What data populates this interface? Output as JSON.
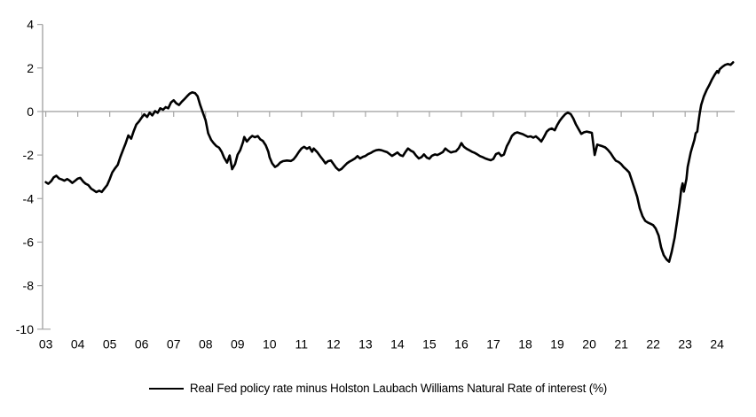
{
  "chart_data": {
    "type": "line",
    "title": "",
    "legend": {
      "position": "bottom-center",
      "label": "Real Fed policy rate minus Holston Laubach Williams Natural Rate of interest (%)"
    },
    "grid": "zero-line-only",
    "background_color": "#ffffff",
    "axis_color": "#a6a6a6",
    "line_color": "#000000",
    "tick_label_color": "#000000",
    "ylim": [
      -10,
      4
    ],
    "xlim": [
      2002.9,
      2024.55
    ],
    "y_ticks": [
      4,
      2,
      0,
      -2,
      -4,
      -6,
      -8,
      -10
    ],
    "y_tick_labels": [
      "4",
      "2",
      "0",
      "-2",
      "-4",
      "-6",
      "-8",
      "-10"
    ],
    "x_tick_years": [
      2003,
      2004,
      2005,
      2006,
      2007,
      2008,
      2009,
      2010,
      2011,
      2012,
      2013,
      2014,
      2015,
      2016,
      2017,
      2018,
      2019,
      2020,
      2021,
      2022,
      2023,
      2024
    ],
    "x_tick_labels": [
      "03",
      "04",
      "05",
      "06",
      "07",
      "08",
      "09",
      "10",
      "11",
      "12",
      "13",
      "14",
      "15",
      "16",
      "17",
      "18",
      "19",
      "20",
      "21",
      "22",
      "23",
      "24"
    ],
    "series": [
      {
        "name": "Real Fed policy rate minus Holston Laubach Williams Natural Rate of interest (%)",
        "color": "#000000",
        "points": [
          [
            2003.0,
            -3.25
          ],
          [
            2003.08,
            -3.32
          ],
          [
            2003.17,
            -3.2
          ],
          [
            2003.25,
            -3.02
          ],
          [
            2003.33,
            -2.95
          ],
          [
            2003.42,
            -3.08
          ],
          [
            2003.5,
            -3.12
          ],
          [
            2003.58,
            -3.18
          ],
          [
            2003.67,
            -3.1
          ],
          [
            2003.75,
            -3.18
          ],
          [
            2003.83,
            -3.28
          ],
          [
            2003.92,
            -3.18
          ],
          [
            2004.0,
            -3.08
          ],
          [
            2004.08,
            -3.05
          ],
          [
            2004.17,
            -3.22
          ],
          [
            2004.25,
            -3.32
          ],
          [
            2004.33,
            -3.38
          ],
          [
            2004.42,
            -3.55
          ],
          [
            2004.5,
            -3.62
          ],
          [
            2004.58,
            -3.7
          ],
          [
            2004.67,
            -3.64
          ],
          [
            2004.75,
            -3.7
          ],
          [
            2004.83,
            -3.55
          ],
          [
            2004.92,
            -3.38
          ],
          [
            2005.0,
            -3.1
          ],
          [
            2005.08,
            -2.8
          ],
          [
            2005.17,
            -2.6
          ],
          [
            2005.25,
            -2.45
          ],
          [
            2005.33,
            -2.1
          ],
          [
            2005.42,
            -1.75
          ],
          [
            2005.5,
            -1.45
          ],
          [
            2005.58,
            -1.1
          ],
          [
            2005.67,
            -1.25
          ],
          [
            2005.75,
            -0.9
          ],
          [
            2005.83,
            -0.6
          ],
          [
            2005.92,
            -0.45
          ],
          [
            2006.0,
            -0.28
          ],
          [
            2006.08,
            -0.13
          ],
          [
            2006.17,
            -0.25
          ],
          [
            2006.25,
            -0.05
          ],
          [
            2006.33,
            -0.18
          ],
          [
            2006.42,
            0.02
          ],
          [
            2006.5,
            -0.06
          ],
          [
            2006.58,
            0.15
          ],
          [
            2006.67,
            0.08
          ],
          [
            2006.75,
            0.2
          ],
          [
            2006.83,
            0.15
          ],
          [
            2006.92,
            0.42
          ],
          [
            2007.0,
            0.52
          ],
          [
            2007.08,
            0.38
          ],
          [
            2007.17,
            0.3
          ],
          [
            2007.25,
            0.44
          ],
          [
            2007.33,
            0.56
          ],
          [
            2007.42,
            0.7
          ],
          [
            2007.5,
            0.82
          ],
          [
            2007.58,
            0.88
          ],
          [
            2007.67,
            0.84
          ],
          [
            2007.75,
            0.7
          ],
          [
            2007.83,
            0.3
          ],
          [
            2007.92,
            -0.08
          ],
          [
            2008.0,
            -0.4
          ],
          [
            2008.08,
            -1.0
          ],
          [
            2008.17,
            -1.3
          ],
          [
            2008.25,
            -1.45
          ],
          [
            2008.33,
            -1.58
          ],
          [
            2008.42,
            -1.66
          ],
          [
            2008.5,
            -1.85
          ],
          [
            2008.58,
            -2.12
          ],
          [
            2008.67,
            -2.35
          ],
          [
            2008.75,
            -2.02
          ],
          [
            2008.83,
            -2.65
          ],
          [
            2008.92,
            -2.42
          ],
          [
            2009.0,
            -1.98
          ],
          [
            2009.08,
            -1.78
          ],
          [
            2009.17,
            -1.4
          ],
          [
            2009.21,
            -1.17
          ],
          [
            2009.29,
            -1.38
          ],
          [
            2009.38,
            -1.22
          ],
          [
            2009.46,
            -1.12
          ],
          [
            2009.54,
            -1.18
          ],
          [
            2009.63,
            -1.13
          ],
          [
            2009.71,
            -1.28
          ],
          [
            2009.79,
            -1.35
          ],
          [
            2009.88,
            -1.55
          ],
          [
            2009.96,
            -1.85
          ],
          [
            2010.0,
            -2.1
          ],
          [
            2010.08,
            -2.38
          ],
          [
            2010.17,
            -2.55
          ],
          [
            2010.25,
            -2.48
          ],
          [
            2010.33,
            -2.35
          ],
          [
            2010.42,
            -2.28
          ],
          [
            2010.54,
            -2.25
          ],
          [
            2010.67,
            -2.27
          ],
          [
            2010.75,
            -2.2
          ],
          [
            2010.83,
            -2.05
          ],
          [
            2010.92,
            -1.85
          ],
          [
            2011.0,
            -1.7
          ],
          [
            2011.08,
            -1.62
          ],
          [
            2011.17,
            -1.71
          ],
          [
            2011.25,
            -1.64
          ],
          [
            2011.33,
            -1.85
          ],
          [
            2011.38,
            -1.7
          ],
          [
            2011.5,
            -1.88
          ],
          [
            2011.58,
            -2.05
          ],
          [
            2011.67,
            -2.22
          ],
          [
            2011.75,
            -2.38
          ],
          [
            2011.83,
            -2.28
          ],
          [
            2011.92,
            -2.25
          ],
          [
            2012.0,
            -2.42
          ],
          [
            2012.08,
            -2.58
          ],
          [
            2012.17,
            -2.7
          ],
          [
            2012.25,
            -2.64
          ],
          [
            2012.33,
            -2.52
          ],
          [
            2012.42,
            -2.38
          ],
          [
            2012.5,
            -2.3
          ],
          [
            2012.58,
            -2.24
          ],
          [
            2012.67,
            -2.16
          ],
          [
            2012.75,
            -2.05
          ],
          [
            2012.83,
            -2.16
          ],
          [
            2012.92,
            -2.08
          ],
          [
            2013.0,
            -2.04
          ],
          [
            2013.08,
            -1.96
          ],
          [
            2013.17,
            -1.9
          ],
          [
            2013.25,
            -1.83
          ],
          [
            2013.33,
            -1.78
          ],
          [
            2013.42,
            -1.76
          ],
          [
            2013.5,
            -1.78
          ],
          [
            2013.58,
            -1.82
          ],
          [
            2013.67,
            -1.86
          ],
          [
            2013.75,
            -1.95
          ],
          [
            2013.83,
            -2.04
          ],
          [
            2013.92,
            -1.96
          ],
          [
            2014.0,
            -1.88
          ],
          [
            2014.08,
            -2.0
          ],
          [
            2014.17,
            -2.05
          ],
          [
            2014.25,
            -1.86
          ],
          [
            2014.33,
            -1.7
          ],
          [
            2014.42,
            -1.8
          ],
          [
            2014.5,
            -1.86
          ],
          [
            2014.58,
            -2.02
          ],
          [
            2014.67,
            -2.16
          ],
          [
            2014.75,
            -2.1
          ],
          [
            2014.83,
            -1.97
          ],
          [
            2014.92,
            -2.12
          ],
          [
            2015.0,
            -2.17
          ],
          [
            2015.08,
            -2.03
          ],
          [
            2015.17,
            -1.97
          ],
          [
            2015.25,
            -2.0
          ],
          [
            2015.33,
            -1.94
          ],
          [
            2015.42,
            -1.86
          ],
          [
            2015.5,
            -1.7
          ],
          [
            2015.58,
            -1.8
          ],
          [
            2015.67,
            -1.88
          ],
          [
            2015.75,
            -1.85
          ],
          [
            2015.83,
            -1.83
          ],
          [
            2015.92,
            -1.68
          ],
          [
            2016.0,
            -1.45
          ],
          [
            2016.08,
            -1.62
          ],
          [
            2016.17,
            -1.72
          ],
          [
            2016.25,
            -1.78
          ],
          [
            2016.33,
            -1.85
          ],
          [
            2016.42,
            -1.9
          ],
          [
            2016.5,
            -1.97
          ],
          [
            2016.58,
            -2.05
          ],
          [
            2016.67,
            -2.1
          ],
          [
            2016.75,
            -2.16
          ],
          [
            2016.83,
            -2.2
          ],
          [
            2016.92,
            -2.24
          ],
          [
            2017.0,
            -2.18
          ],
          [
            2017.08,
            -1.96
          ],
          [
            2017.17,
            -1.9
          ],
          [
            2017.25,
            -2.04
          ],
          [
            2017.33,
            -1.98
          ],
          [
            2017.42,
            -1.6
          ],
          [
            2017.5,
            -1.38
          ],
          [
            2017.58,
            -1.12
          ],
          [
            2017.67,
            -1.0
          ],
          [
            2017.75,
            -0.96
          ],
          [
            2017.83,
            -1.0
          ],
          [
            2017.92,
            -1.04
          ],
          [
            2018.0,
            -1.1
          ],
          [
            2018.08,
            -1.16
          ],
          [
            2018.17,
            -1.14
          ],
          [
            2018.25,
            -1.2
          ],
          [
            2018.33,
            -1.14
          ],
          [
            2018.42,
            -1.26
          ],
          [
            2018.5,
            -1.38
          ],
          [
            2018.58,
            -1.18
          ],
          [
            2018.67,
            -0.92
          ],
          [
            2018.75,
            -0.82
          ],
          [
            2018.83,
            -0.78
          ],
          [
            2018.92,
            -0.86
          ],
          [
            2019.0,
            -0.62
          ],
          [
            2019.08,
            -0.42
          ],
          [
            2019.17,
            -0.25
          ],
          [
            2019.25,
            -0.12
          ],
          [
            2019.33,
            -0.05
          ],
          [
            2019.42,
            -0.12
          ],
          [
            2019.5,
            -0.32
          ],
          [
            2019.58,
            -0.58
          ],
          [
            2019.67,
            -0.82
          ],
          [
            2019.75,
            -1.03
          ],
          [
            2019.83,
            -0.96
          ],
          [
            2019.92,
            -0.92
          ],
          [
            2020.0,
            -0.95
          ],
          [
            2020.08,
            -0.98
          ],
          [
            2020.17,
            -2.0
          ],
          [
            2020.25,
            -1.52
          ],
          [
            2020.33,
            -1.56
          ],
          [
            2020.42,
            -1.6
          ],
          [
            2020.5,
            -1.65
          ],
          [
            2020.58,
            -1.76
          ],
          [
            2020.67,
            -1.92
          ],
          [
            2020.75,
            -2.1
          ],
          [
            2020.83,
            -2.26
          ],
          [
            2020.92,
            -2.32
          ],
          [
            2021.0,
            -2.42
          ],
          [
            2021.08,
            -2.56
          ],
          [
            2021.17,
            -2.68
          ],
          [
            2021.25,
            -2.8
          ],
          [
            2021.33,
            -3.15
          ],
          [
            2021.42,
            -3.55
          ],
          [
            2021.5,
            -3.92
          ],
          [
            2021.58,
            -4.45
          ],
          [
            2021.67,
            -4.82
          ],
          [
            2021.75,
            -5.02
          ],
          [
            2021.83,
            -5.1
          ],
          [
            2021.92,
            -5.16
          ],
          [
            2022.0,
            -5.22
          ],
          [
            2022.08,
            -5.38
          ],
          [
            2022.17,
            -5.7
          ],
          [
            2022.25,
            -6.25
          ],
          [
            2022.33,
            -6.6
          ],
          [
            2022.42,
            -6.8
          ],
          [
            2022.5,
            -6.9
          ],
          [
            2022.58,
            -6.45
          ],
          [
            2022.67,
            -5.8
          ],
          [
            2022.75,
            -5.0
          ],
          [
            2022.83,
            -4.2
          ],
          [
            2022.88,
            -3.55
          ],
          [
            2022.92,
            -3.3
          ],
          [
            2022.96,
            -3.68
          ],
          [
            2023.04,
            -3.1
          ],
          [
            2023.08,
            -2.55
          ],
          [
            2023.13,
            -2.2
          ],
          [
            2023.17,
            -1.9
          ],
          [
            2023.21,
            -1.7
          ],
          [
            2023.29,
            -1.3
          ],
          [
            2023.33,
            -1.0
          ],
          [
            2023.38,
            -0.92
          ],
          [
            2023.42,
            -0.45
          ],
          [
            2023.46,
            -0.05
          ],
          [
            2023.5,
            0.3
          ],
          [
            2023.58,
            0.68
          ],
          [
            2023.67,
            0.98
          ],
          [
            2023.75,
            1.2
          ],
          [
            2023.83,
            1.45
          ],
          [
            2023.92,
            1.68
          ],
          [
            2024.0,
            1.86
          ],
          [
            2024.04,
            1.78
          ],
          [
            2024.08,
            1.94
          ],
          [
            2024.17,
            2.06
          ],
          [
            2024.25,
            2.14
          ],
          [
            2024.33,
            2.18
          ],
          [
            2024.42,
            2.14
          ],
          [
            2024.5,
            2.26
          ]
        ]
      }
    ]
  }
}
